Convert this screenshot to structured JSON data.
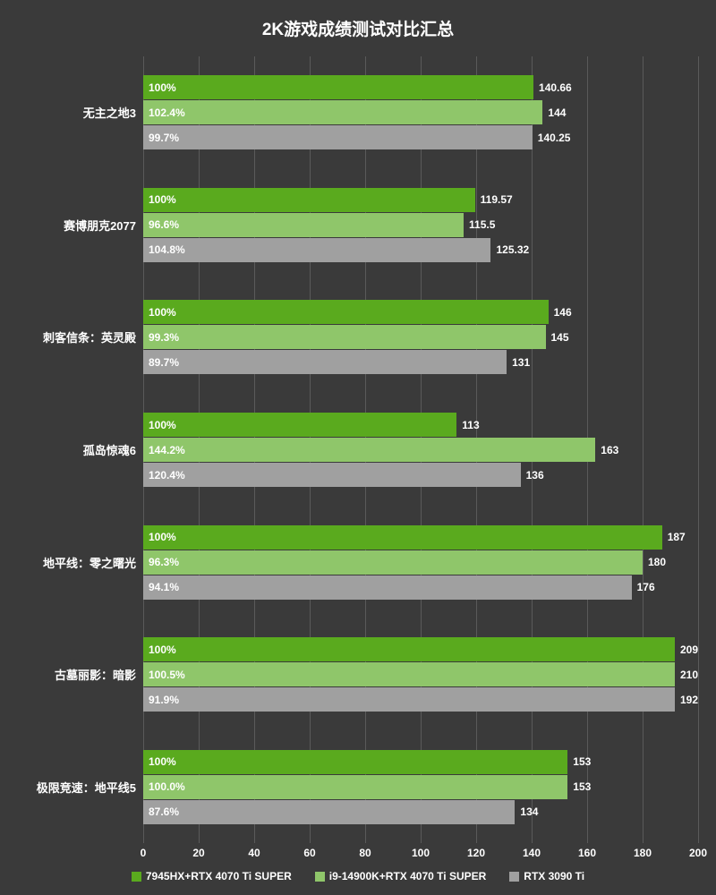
{
  "chart": {
    "title": "2K游戏成绩测试对比汇总",
    "type": "bar-horizontal-grouped",
    "background_color": "#3a3a3a",
    "grid_color": "#5a5a5a",
    "text_color": "#ffffff",
    "title_fontsize": 19,
    "label_fontsize": 13,
    "value_fontsize": 12,
    "xlim": [
      0,
      200
    ],
    "xtick_step": 20,
    "xticks": [
      0,
      20,
      40,
      60,
      80,
      100,
      120,
      140,
      160,
      180,
      200
    ],
    "series": [
      {
        "name": "7945HX+RTX 4070 Ti SUPER",
        "color": "#5aaa1e"
      },
      {
        "name": "i9-14900K+RTX 4070 Ti SUPER",
        "color": "#8fc66a"
      },
      {
        "name": "RTX 3090 Ti",
        "color": "#a0a0a0"
      }
    ],
    "categories": [
      {
        "label": "无主之地3",
        "bars": [
          {
            "percent": "100%",
            "value": 140.66
          },
          {
            "percent": "102.4%",
            "value": 144
          },
          {
            "percent": "99.7%",
            "value": 140.25
          }
        ]
      },
      {
        "label": "赛博朋克2077",
        "bars": [
          {
            "percent": "100%",
            "value": 119.57
          },
          {
            "percent": "96.6%",
            "value": 115.5
          },
          {
            "percent": "104.8%",
            "value": 125.32
          }
        ]
      },
      {
        "label": "刺客信条：英灵殿",
        "bars": [
          {
            "percent": "100%",
            "value": 146
          },
          {
            "percent": "99.3%",
            "value": 145
          },
          {
            "percent": "89.7%",
            "value": 131
          }
        ]
      },
      {
        "label": "孤岛惊魂6",
        "bars": [
          {
            "percent": "100%",
            "value": 113
          },
          {
            "percent": "144.2%",
            "value": 163
          },
          {
            "percent": "120.4%",
            "value": 136
          }
        ]
      },
      {
        "label": "地平线：零之曙光",
        "bars": [
          {
            "percent": "100%",
            "value": 187
          },
          {
            "percent": "96.3%",
            "value": 180
          },
          {
            "percent": "94.1%",
            "value": 176
          }
        ]
      },
      {
        "label": "古墓丽影：暗影",
        "bars": [
          {
            "percent": "100%",
            "value": 209
          },
          {
            "percent": "100.5%",
            "value": 210
          },
          {
            "percent": "91.9%",
            "value": 192
          }
        ]
      },
      {
        "label": "极限竞速：地平线5",
        "bars": [
          {
            "percent": "100%",
            "value": 153
          },
          {
            "percent": "100.0%",
            "value": 153
          },
          {
            "percent": "87.6%",
            "value": 134
          }
        ]
      }
    ]
  }
}
